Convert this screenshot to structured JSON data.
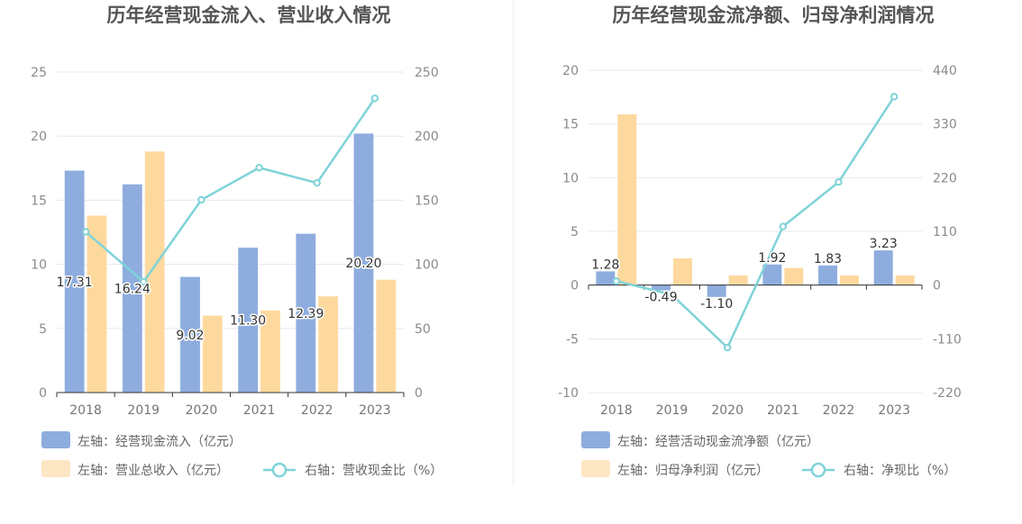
{
  "colors": {
    "bar_primary": "#8eadde",
    "bar_secondary": "#fed99e",
    "line": "#7fd3d8",
    "legend_secondary": "#fde6c3",
    "grid": "#e6e8f0",
    "axis": "#333333"
  },
  "chart_data": [
    {
      "type": "bar",
      "title": "历年经营现金流入、营业收入情况",
      "categories": [
        "2018",
        "2019",
        "2020",
        "2021",
        "2022",
        "2023"
      ],
      "left_axis": {
        "ylim": [
          0,
          25
        ],
        "ticks": [
          "0",
          "5",
          "10",
          "15",
          "20",
          "25"
        ]
      },
      "right_axis": {
        "ylim": [
          0,
          250
        ],
        "ticks": [
          "0",
          "50",
          "100",
          "150",
          "200",
          "250"
        ]
      },
      "series": [
        {
          "name": "左轴：经营现金流入（亿元）",
          "type": "bar",
          "axis": "left",
          "values": [
            17.31,
            16.24,
            9.02,
            11.3,
            12.39,
            20.2
          ],
          "labels": [
            "17.31",
            "16.24",
            "9.02",
            "11.30",
            "12.39",
            "20.20"
          ]
        },
        {
          "name": "左轴：营业总收入（亿元）",
          "type": "bar",
          "axis": "left",
          "values": [
            13.8,
            18.8,
            6.0,
            6.4,
            7.5,
            8.8
          ]
        },
        {
          "name": "右轴：营收现金比（%）",
          "type": "line",
          "axis": "right",
          "values": [
            125.4,
            86.4,
            150.3,
            175.4,
            163.5,
            229.5
          ]
        }
      ],
      "grid": true,
      "legend_position": "bottom"
    },
    {
      "type": "bar",
      "title": "历年经营现金流净额、归母净利润情况",
      "categories": [
        "2018",
        "2019",
        "2020",
        "2021",
        "2022",
        "2023"
      ],
      "left_axis": {
        "ylim": [
          -10,
          20
        ],
        "ticks": [
          "-10",
          "-5",
          "0",
          "5",
          "10",
          "15",
          "20"
        ]
      },
      "right_axis": {
        "ylim": [
          -220,
          440
        ],
        "ticks": [
          "-220",
          "-110",
          "0",
          "110",
          "220",
          "330",
          "440"
        ]
      },
      "series": [
        {
          "name": "左轴：经营活动现金流净额（亿元）",
          "type": "bar",
          "axis": "left",
          "values": [
            1.28,
            -0.49,
            -1.1,
            1.92,
            1.83,
            3.23
          ],
          "labels": [
            "1.28",
            "-0.49",
            "-1.10",
            "1.92",
            "1.83",
            "3.23"
          ]
        },
        {
          "name": "左轴：归母净利润（亿元）",
          "type": "bar",
          "axis": "left",
          "values": [
            15.9,
            2.5,
            0.9,
            1.6,
            0.9,
            0.9
          ]
        },
        {
          "name": "右轴：净现比（%）",
          "type": "line",
          "axis": "right",
          "values": [
            8.1,
            -19.6,
            -128.0,
            120.0,
            211.0,
            386.0
          ]
        }
      ],
      "grid": true,
      "legend_position": "bottom"
    }
  ]
}
